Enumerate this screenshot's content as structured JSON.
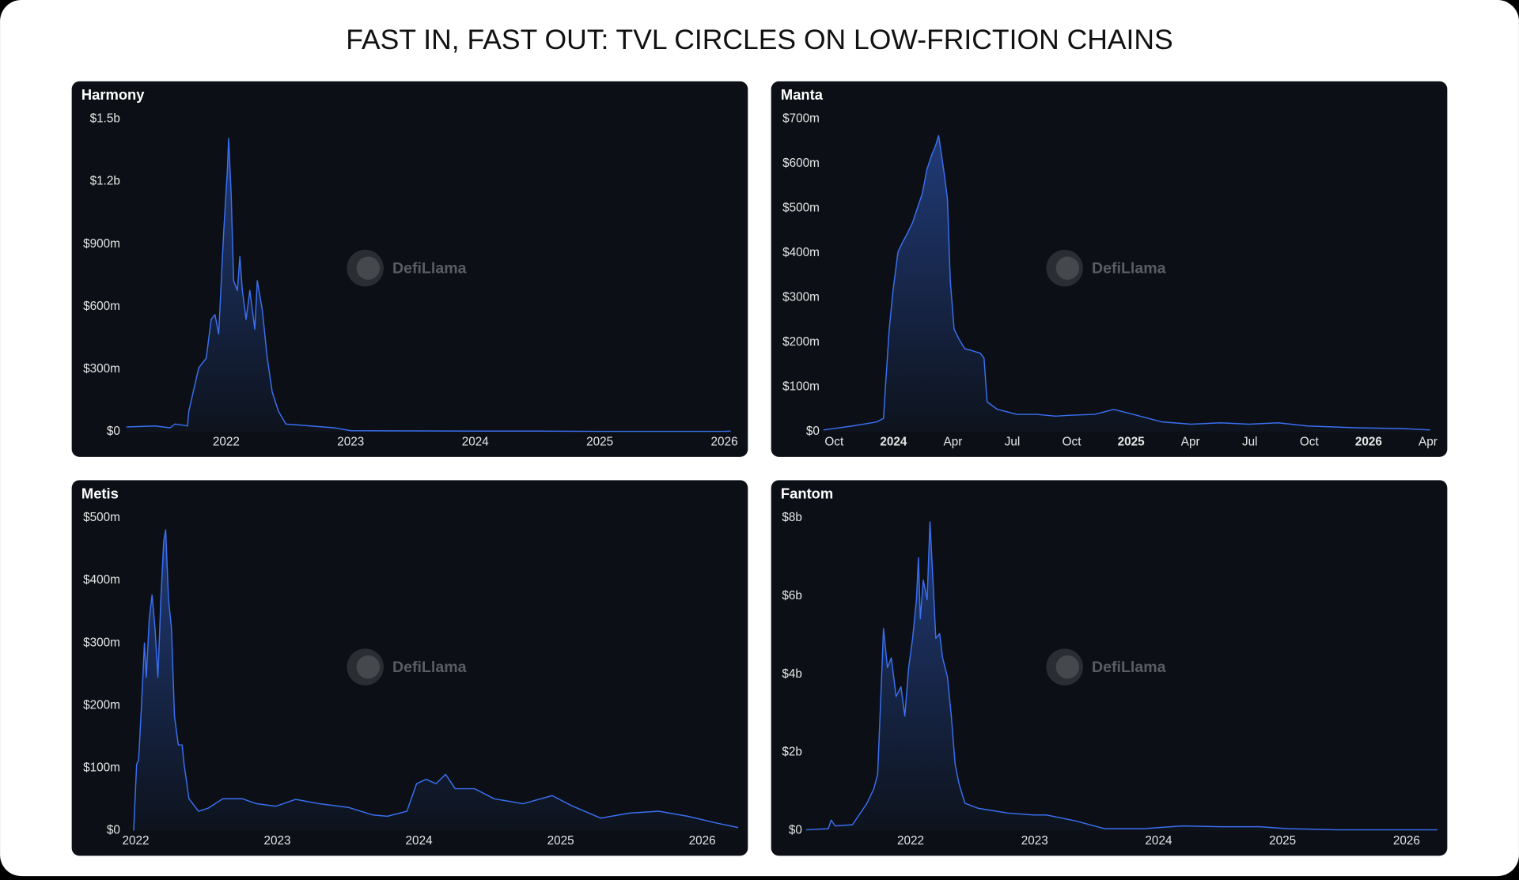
{
  "title": "FAST IN, FAST OUT: TVL CIRCLES ON LOW-FRICTION CHAINS",
  "chart_data": [
    {
      "type": "area",
      "title": "Harmony",
      "watermark": "DefiLlama",
      "color": "#3a6ff0",
      "x": [
        2021.2,
        2021.43,
        2021.55,
        2021.59,
        2021.69,
        2021.7,
        2021.78,
        2021.84,
        2021.88,
        2021.91,
        2021.94,
        2021.98,
        2022.01,
        2022.02,
        2022.04,
        2022.06,
        2022.09,
        2022.11,
        2022.13,
        2022.16,
        2022.19,
        2022.23,
        2022.25,
        2022.29,
        2022.33,
        2022.37,
        2022.42,
        2022.48,
        2022.68,
        2022.87,
        2023.0,
        2023.5,
        2024.0,
        2024.5,
        2025.0,
        2025.5,
        2026.0,
        2026.05
      ],
      "values": [
        23000000,
        28000000,
        19000000,
        37000000,
        28000000,
        98000000,
        307000000,
        353000000,
        539000000,
        562000000,
        469000000,
        957000000,
        1258000000,
        1407000000,
        1142000000,
        725000000,
        678000000,
        841000000,
        678000000,
        539000000,
        678000000,
        492000000,
        725000000,
        585000000,
        353000000,
        190000000,
        98000000,
        37000000,
        28000000,
        19000000,
        5000000,
        4000000,
        3000000,
        3000000,
        2000000,
        2000000,
        2000000,
        3000000
      ],
      "xlim": [
        2021.18,
        2026.08
      ],
      "xticks": [
        2022,
        2023,
        2024,
        2025,
        2026
      ],
      "ylim": [
        0,
        1500000000
      ],
      "yticks": [
        {
          "value": 0,
          "label": "$0"
        },
        {
          "value": 300000000,
          "label": "$300m"
        },
        {
          "value": 600000000,
          "label": "$600m"
        },
        {
          "value": 900000000,
          "label": "$900m"
        },
        {
          "value": 1200000000,
          "label": "$1.2b"
        },
        {
          "value": 1500000000,
          "label": "$1.5b"
        }
      ]
    },
    {
      "type": "area",
      "title": "Manta",
      "watermark": "DefiLlama",
      "color": "#3a6ff0",
      "x": [
        2023.705,
        2023.827,
        2023.929,
        2023.958,
        2023.966,
        2023.982,
        2023.998,
        2024.019,
        2024.039,
        2024.06,
        2024.08,
        2024.1,
        2024.121,
        2024.141,
        2024.161,
        2024.178,
        2024.19,
        2024.202,
        2024.214,
        2024.227,
        2024.239,
        2024.255,
        2024.275,
        2024.3,
        2024.328,
        2024.365,
        2024.381,
        2024.394,
        2024.438,
        2024.52,
        2024.601,
        2024.683,
        2024.744,
        2024.846,
        2024.927,
        2025.009,
        2025.131,
        2025.253,
        2025.375,
        2025.497,
        2025.62,
        2025.742,
        2025.945,
        2026.149,
        2026.259
      ],
      "values": [
        4000000,
        13000000,
        22000000,
        30000000,
        100000000,
        230000000,
        316000000,
        403000000,
        425000000,
        446000000,
        468000000,
        500000000,
        533000000,
        588000000,
        620000000,
        642000000,
        663000000,
        620000000,
        576000000,
        522000000,
        338000000,
        230000000,
        208000000,
        186000000,
        182000000,
        176000000,
        165000000,
        67000000,
        50000000,
        39000000,
        39000000,
        35000000,
        37000000,
        39000000,
        50000000,
        39000000,
        22000000,
        17000000,
        20000000,
        17000000,
        20000000,
        13000000,
        9000000,
        7000000,
        4000000
      ],
      "xlim": [
        2023.705,
        2026.266
      ],
      "xticks": [
        {
          "value": 2023.75,
          "label": "Oct"
        },
        2024,
        {
          "value": 2024.25,
          "label": "Apr"
        },
        {
          "value": 2024.5,
          "label": "Jul"
        },
        {
          "value": 2024.75,
          "label": "Oct"
        },
        2025,
        {
          "value": 2025.25,
          "label": "Apr"
        },
        {
          "value": 2025.5,
          "label": "Jul"
        },
        {
          "value": 2025.75,
          "label": "Oct"
        },
        2026,
        {
          "value": 2026.25,
          "label": "Apr"
        }
      ],
      "ylim": [
        0,
        700000000
      ],
      "yticks": [
        {
          "value": 0,
          "label": "$0"
        },
        {
          "value": 100000000,
          "label": "$100m"
        },
        {
          "value": 200000000,
          "label": "$200m"
        },
        {
          "value": 300000000,
          "label": "$300m"
        },
        {
          "value": 400000000,
          "label": "$400m"
        },
        {
          "value": 500000000,
          "label": "$500m"
        },
        {
          "value": 600000000,
          "label": "$600m"
        },
        {
          "value": 700000000,
          "label": "$700m"
        }
      ]
    },
    {
      "type": "area",
      "title": "Metis",
      "watermark": "DefiLlama",
      "color": "#3a6ff0",
      "x": [
        2021.986,
        2022.007,
        2022.021,
        2022.041,
        2022.062,
        2022.075,
        2022.096,
        2022.116,
        2022.137,
        2022.157,
        2022.178,
        2022.198,
        2022.212,
        2022.232,
        2022.253,
        2022.274,
        2022.301,
        2022.328,
        2022.342,
        2022.376,
        2022.444,
        2022.513,
        2022.615,
        2022.752,
        2022.855,
        2022.991,
        2023.128,
        2023.299,
        2023.504,
        2023.675,
        2023.778,
        2023.915,
        2023.983,
        2024.051,
        2024.12,
        2024.188,
        2024.256,
        2024.393,
        2024.53,
        2024.735,
        2024.94,
        2025.077,
        2025.282,
        2025.487,
        2025.692,
        2025.897,
        2026.103,
        2026.253
      ],
      "values": [
        0,
        106000000,
        113000000,
        199000000,
        300000000,
        245000000,
        339000000,
        377000000,
        323000000,
        245000000,
        370000000,
        463000000,
        481000000,
        370000000,
        323000000,
        183000000,
        137000000,
        137000000,
        106000000,
        51000000,
        31000000,
        36000000,
        51000000,
        51000000,
        43000000,
        39000000,
        50000000,
        43000000,
        37000000,
        25000000,
        23000000,
        31000000,
        75000000,
        82000000,
        75000000,
        90000000,
        67000000,
        67000000,
        51000000,
        43000000,
        56000000,
        40000000,
        20000000,
        28000000,
        31000000,
        23000000,
        12000000,
        5000000
      ],
      "xlim": [
        2021.918,
        2026.274
      ],
      "xticks": [
        2022,
        2023,
        2024,
        2025,
        2026
      ],
      "ylim": [
        0,
        500000000
      ],
      "yticks": [
        {
          "value": 0,
          "label": "$0"
        },
        {
          "value": 100000000,
          "label": "$100m"
        },
        {
          "value": 200000000,
          "label": "$200m"
        },
        {
          "value": 300000000,
          "label": "$300m"
        },
        {
          "value": 400000000,
          "label": "$400m"
        },
        {
          "value": 500000000,
          "label": "$500m"
        }
      ]
    },
    {
      "type": "area",
      "title": "Fantom",
      "watermark": "DefiLlama",
      "color": "#3a6ff0",
      "x": [
        2021.156,
        2021.336,
        2021.359,
        2021.391,
        2021.531,
        2021.648,
        2021.703,
        2021.734,
        2021.766,
        2021.781,
        2021.813,
        2021.844,
        2021.883,
        2021.922,
        2021.953,
        2021.984,
        2022.016,
        2022.047,
        2022.063,
        2022.078,
        2022.102,
        2022.133,
        2022.156,
        2022.18,
        2022.203,
        2022.234,
        2022.258,
        2022.297,
        2022.328,
        2022.359,
        2022.391,
        2022.438,
        2022.547,
        2022.781,
        2022.992,
        2023.094,
        2023.328,
        2023.563,
        2023.875,
        2024.188,
        2024.5,
        2024.813,
        2025.047,
        2025.438,
        2025.75,
        2026.25
      ],
      "values": [
        20000000,
        50000000,
        270000000,
        120000000,
        150000000,
        700000000,
        1070000000,
        1440000000,
        3930000000,
        5170000000,
        4170000000,
        4420000000,
        3430000000,
        3680000000,
        2930000000,
        4170000000,
        4920000000,
        5910000000,
        6980000000,
        5420000000,
        6410000000,
        5910000000,
        7900000000,
        6410000000,
        4920000000,
        5040000000,
        4420000000,
        3930000000,
        2930000000,
        1690000000,
        1190000000,
        700000000,
        570000000,
        450000000,
        400000000,
        400000000,
        250000000,
        50000000,
        50000000,
        120000000,
        100000000,
        100000000,
        50000000,
        20000000,
        20000000,
        20000000
      ],
      "xlim": [
        2021.156,
        2026.266
      ],
      "xticks": [
        2022,
        2023,
        2024,
        2025,
        2026
      ],
      "ylim": [
        0,
        8000000000
      ],
      "yticks": [
        {
          "value": 0,
          "label": "$0"
        },
        {
          "value": 2000000000,
          "label": "$2b"
        },
        {
          "value": 4000000000,
          "label": "$4b"
        },
        {
          "value": 6000000000,
          "label": "$6b"
        },
        {
          "value": 8000000000,
          "label": "$8b"
        }
      ]
    }
  ]
}
